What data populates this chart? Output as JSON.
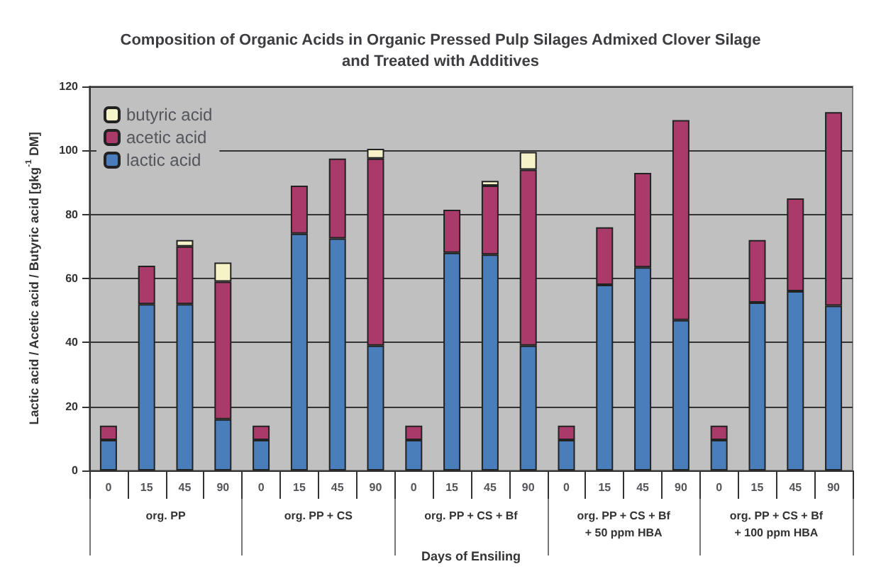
{
  "chart_data": {
    "type": "bar",
    "stacked": true,
    "title": "Composition of Organic Acids in Organic Pressed Pulp Silages Admixed Clover Silage\nand Treated with Additives",
    "xlabel": "Days of Ensiling",
    "ylabel": "Lactic acid / Acetic acid / Butyric acid [gkg$^{-1}$ DM]",
    "categories": [
      "0",
      "15",
      "45",
      "90",
      "0",
      "15",
      "45",
      "90",
      "0",
      "15",
      "45",
      "90",
      "0",
      "15",
      "45",
      "90",
      "0",
      "15",
      "45",
      "90"
    ],
    "annotations": [
      "org. PP",
      "org. PP + CS",
      "org. PP + CS + Bf",
      "org. PP + CS + Bf\n+ 50 ppm HBA",
      "org. PP + CS + Bf\n+ 100 ppm HBA"
    ],
    "series": [
      {
        "name": "lactic acid",
        "color": "#4a7ebb",
        "values": [
          9.5,
          52,
          52,
          16,
          9.5,
          74,
          72.5,
          39,
          9.5,
          68,
          67.5,
          39,
          9.5,
          58,
          63.5,
          47,
          9.5,
          52.5,
          56,
          51.5
        ]
      },
      {
        "name": "acetic acid",
        "color": "#a93a6a",
        "values": [
          4.5,
          12,
          18,
          43,
          4.5,
          15,
          25,
          58.5,
          4.5,
          13.5,
          21.5,
          55,
          4.5,
          18,
          29.5,
          62.5,
          4.5,
          19.5,
          29,
          60.5
        ]
      },
      {
        "name": "butyric acid",
        "color": "#f7f3c8",
        "values": [
          null,
          null,
          2,
          6,
          null,
          null,
          null,
          3,
          null,
          null,
          1.5,
          5.5,
          null,
          null,
          null,
          null,
          null,
          null,
          null,
          null
        ]
      }
    ],
    "ylim": [
      0,
      120
    ],
    "yticks": [
      0,
      20,
      40,
      60,
      80,
      100,
      120
    ],
    "grid": "y",
    "legend": "top left"
  }
}
